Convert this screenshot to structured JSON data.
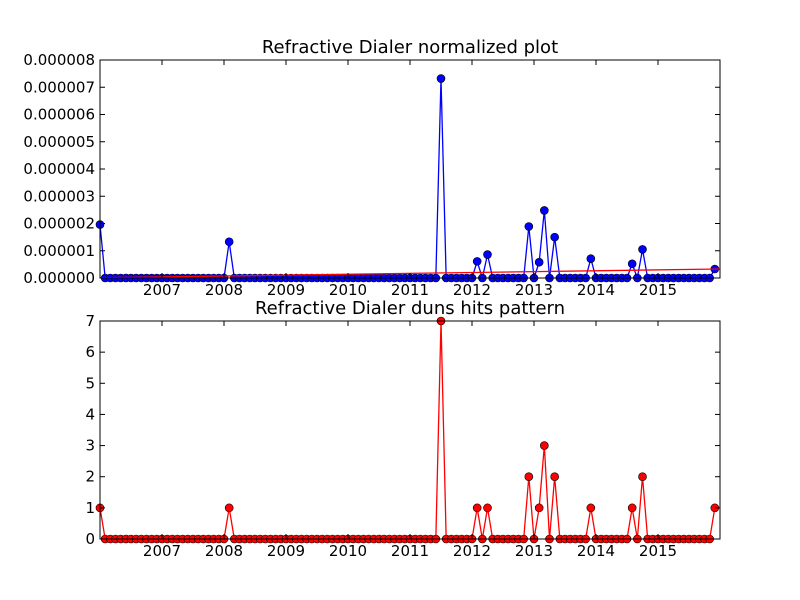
{
  "chart_data": [
    {
      "type": "line",
      "title": "Refractive Dialer normalized plot",
      "xlabel": "",
      "ylabel": "",
      "xlim": [
        2006.0,
        2016.0
      ],
      "ylim": [
        0,
        8e-06
      ],
      "x_ticks": [
        "2007",
        "2008",
        "2009",
        "2010",
        "2011",
        "2012",
        "2013",
        "2014",
        "2015"
      ],
      "y_ticks": [
        "0.000000",
        "0.000001",
        "0.000002",
        "0.000003",
        "0.000004",
        "0.000005",
        "0.000006",
        "0.000007",
        "0.000008"
      ],
      "grid": false,
      "series": [
        {
          "color": "#0000ff",
          "marker": "circle",
          "points": [
            [
              2006.0,
              1.96e-06
            ],
            [
              2008.08,
              1.33e-06
            ],
            [
              2011.5,
              7.32e-06
            ],
            [
              2012.08,
              6.1e-07
            ],
            [
              2012.25,
              8.6e-07
            ],
            [
              2012.92,
              1.89e-06
            ],
            [
              2013.08,
              5.8e-07
            ],
            [
              2013.17,
              2.48e-06
            ],
            [
              2013.33,
              1.5e-06
            ],
            [
              2013.92,
              7.1e-07
            ],
            [
              2014.58,
              5.2e-07
            ],
            [
              2014.75,
              1.05e-06
            ],
            [
              2015.92,
              3.3e-07
            ]
          ]
        },
        {
          "color": "#ff0000",
          "marker": "none",
          "points": [
            [
              2006.0,
              1e-08
            ],
            [
              2016.0,
              3.3e-07
            ]
          ]
        }
      ]
    },
    {
      "type": "line",
      "title": "Refractive Dialer duns hits pattern",
      "xlabel": "",
      "ylabel": "",
      "xlim": [
        2006.0,
        2016.0
      ],
      "ylim": [
        0,
        7
      ],
      "x_ticks": [
        "2007",
        "2008",
        "2009",
        "2010",
        "2011",
        "2012",
        "2013",
        "2014",
        "2015"
      ],
      "y_ticks": [
        "0",
        "1",
        "2",
        "3",
        "4",
        "5",
        "6",
        "7"
      ],
      "grid": false,
      "series": [
        {
          "color": "#ff0000",
          "marker": "circle",
          "points": [
            [
              2006.0,
              1
            ],
            [
              2008.08,
              1
            ],
            [
              2011.5,
              7
            ],
            [
              2012.08,
              1
            ],
            [
              2012.25,
              1
            ],
            [
              2012.92,
              2
            ],
            [
              2013.08,
              1
            ],
            [
              2013.17,
              3
            ],
            [
              2013.33,
              2
            ],
            [
              2013.92,
              1
            ],
            [
              2014.58,
              1
            ],
            [
              2014.75,
              2
            ],
            [
              2015.92,
              1
            ]
          ]
        }
      ]
    }
  ]
}
